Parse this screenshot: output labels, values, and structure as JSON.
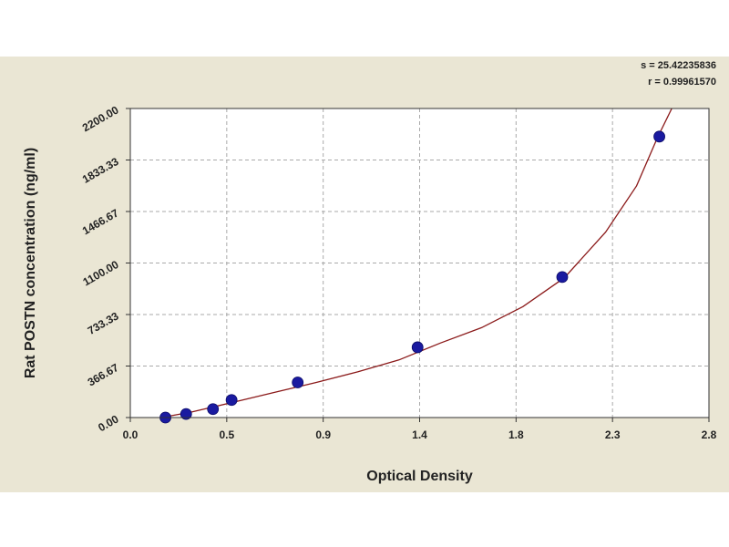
{
  "chart_data": {
    "type": "scatter",
    "xlabel": "Optical Density",
    "ylabel": "Rat POSTN concentration (ng/ml)",
    "xlim": [
      0.0,
      2.8
    ],
    "ylim": [
      0.0,
      2200.0
    ],
    "x_ticks": [
      "0.0",
      "0.5",
      "0.9",
      "1.4",
      "1.8",
      "2.3",
      "2.8"
    ],
    "y_ticks": [
      "0.00",
      "366.67",
      "733.33",
      "1100.00",
      "1466.67",
      "1833.33",
      "2200.00"
    ],
    "grid": true,
    "stats": {
      "s": "s = 25.42235836",
      "r": "r = 0.99961570"
    },
    "series": [
      {
        "points": [
          {
            "x": 0.17,
            "y": 0
          },
          {
            "x": 0.27,
            "y": 25
          },
          {
            "x": 0.4,
            "y": 60
          },
          {
            "x": 0.49,
            "y": 125
          },
          {
            "x": 0.81,
            "y": 250
          },
          {
            "x": 1.39,
            "y": 500
          },
          {
            "x": 2.09,
            "y": 1000
          },
          {
            "x": 2.56,
            "y": 2000
          }
        ],
        "marker_color": "#1a1aa0"
      }
    ],
    "fit_curve": {
      "x": [
        0.15,
        0.3,
        0.5,
        0.7,
        0.9,
        1.1,
        1.3,
        1.5,
        1.7,
        1.9,
        2.1,
        2.3,
        2.45,
        2.55,
        2.62
      ],
      "y": [
        0,
        40,
        110,
        180,
        250,
        325,
        410,
        530,
        640,
        790,
        995,
        1320,
        1650,
        1990,
        2200
      ],
      "color": "#8b1a1a"
    },
    "colors": {
      "plot_background": "#ffffff",
      "figure_background": "#eae6d4",
      "grid": "#aaaaaa"
    }
  }
}
